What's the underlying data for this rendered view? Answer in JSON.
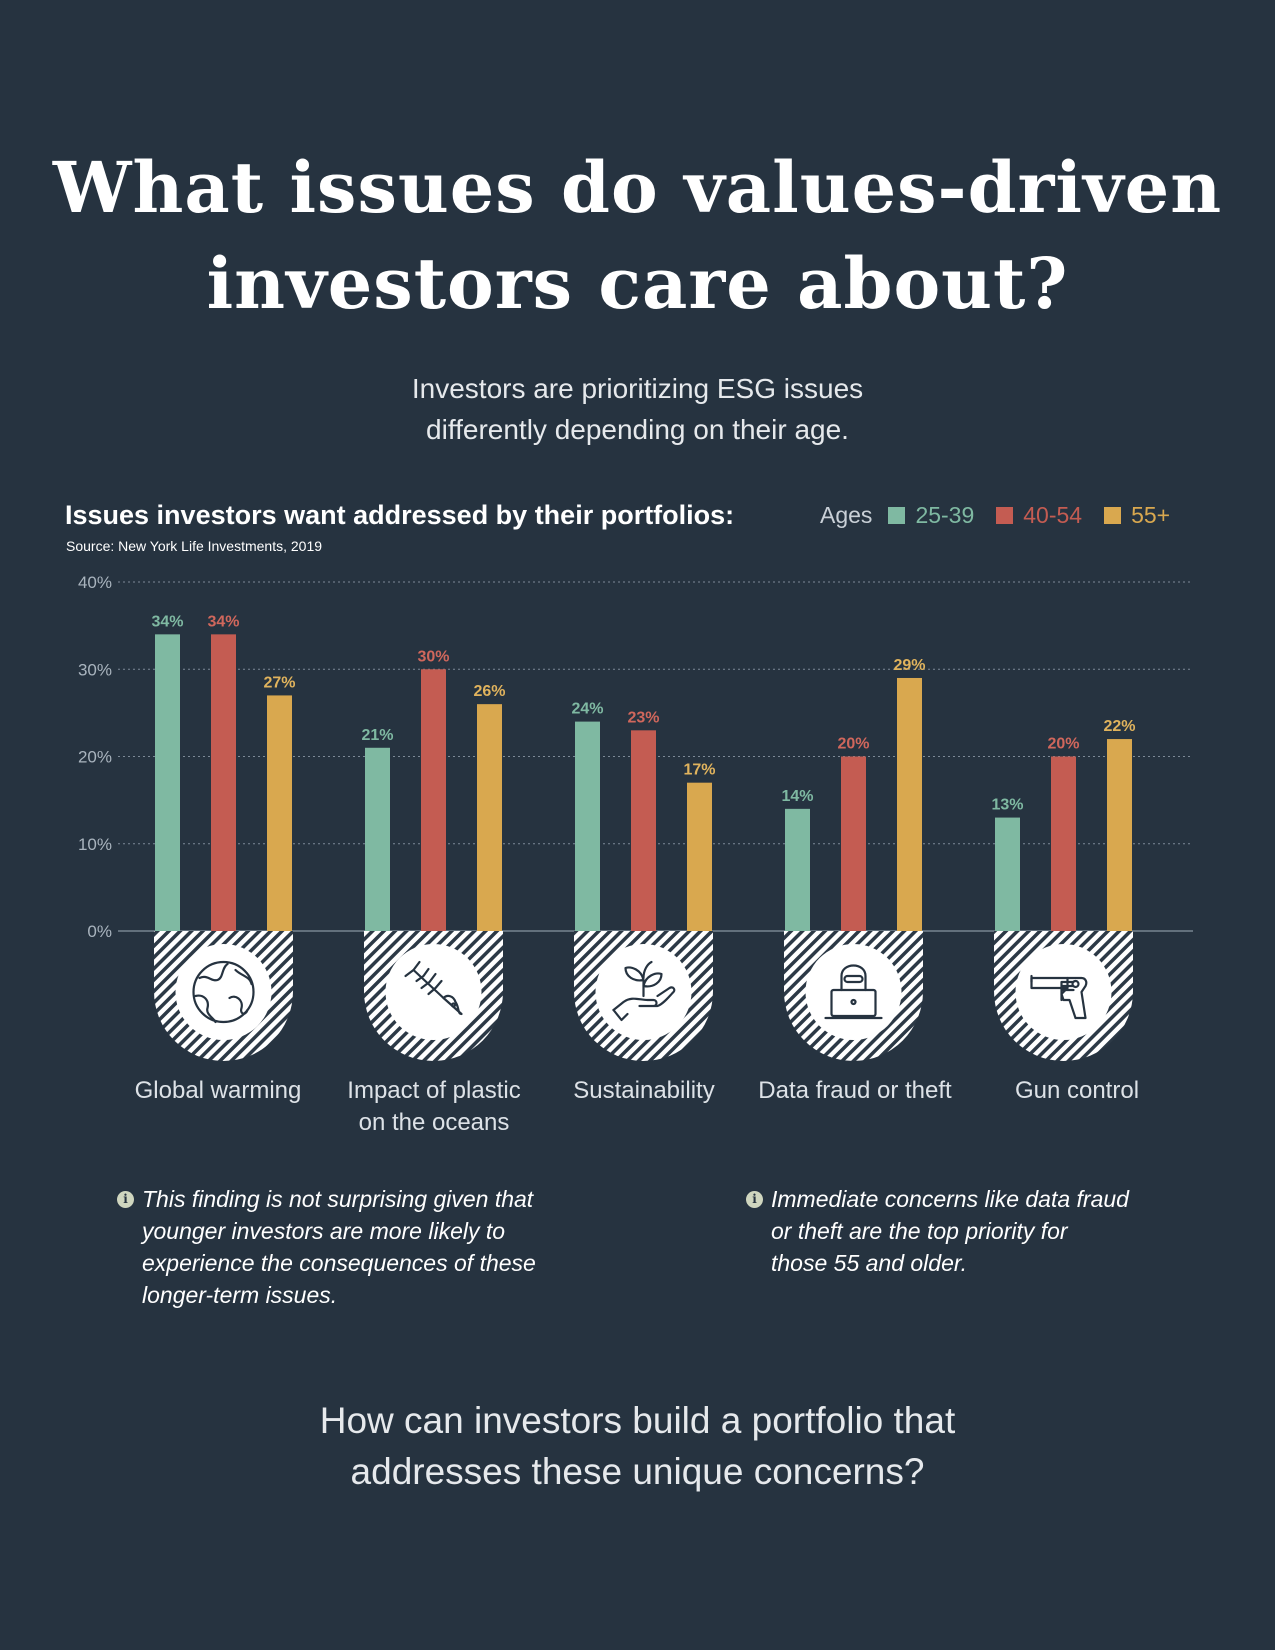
{
  "header": {
    "title_line1": "What issues do values-driven",
    "title_line2": "investors care about?",
    "subtitle_line1": "Investors are prioritizing ESG issues",
    "subtitle_line2": "differently depending on their age."
  },
  "chart_heading": "Issues investors want addressed by their portfolios:",
  "source": "Source: New York Life Investments, 2019",
  "legend": {
    "title": "Ages",
    "items": [
      {
        "label": "25-39",
        "color": "#7fb9a2"
      },
      {
        "label": "40-54",
        "color": "#c45c52"
      },
      {
        "label": "55+",
        "color": "#d9a84f"
      }
    ]
  },
  "chart_data": {
    "type": "bar",
    "title": "Issues investors want addressed by their portfolios:",
    "categories": [
      "Global warming",
      "Impact of plastic on the oceans",
      "Sustainability",
      "Data fraud or theft",
      "Gun control"
    ],
    "series": [
      {
        "name": "25-39",
        "color": "#7fb9a2",
        "values": [
          34,
          21,
          24,
          14,
          13
        ]
      },
      {
        "name": "40-54",
        "color": "#c45c52",
        "values": [
          34,
          30,
          23,
          20,
          20
        ]
      },
      {
        "name": "55+",
        "color": "#d9a84f",
        "values": [
          27,
          26,
          17,
          29,
          22
        ]
      }
    ],
    "ylim": [
      0,
      40
    ],
    "yticks": [
      "0%",
      "10%",
      "20%",
      "30%",
      "40%"
    ],
    "value_suffix": "%",
    "grid": true,
    "legend_position": "top-right"
  },
  "categories_display": [
    {
      "line1": "Global warming",
      "line2": "",
      "icon": "globe-icon"
    },
    {
      "line1": "Impact of plastic",
      "line2": "on the oceans",
      "icon": "fish-bone-icon"
    },
    {
      "line1": "Sustainability",
      "line2": "",
      "icon": "plant-in-hand-icon"
    },
    {
      "line1": "Data fraud or theft",
      "line2": "",
      "icon": "hacker-laptop-icon"
    },
    {
      "line1": "Gun control",
      "line2": "",
      "icon": "revolver-icon"
    }
  ],
  "notes": [
    {
      "icon": "info-icon",
      "line1": "This finding is not surprising given that",
      "line2": "younger investors are more likely to",
      "line3": "experience the consequences of these",
      "line4": "longer-term issues."
    },
    {
      "icon": "info-icon",
      "line1": "Immediate concerns like data fraud",
      "line2": "or theft are the top priority for",
      "line3": "those 55 and older.",
      "line4": ""
    }
  ],
  "closing": {
    "line1": "How can investors build a portfolio that",
    "line2": "addresses these unique concerns?"
  }
}
